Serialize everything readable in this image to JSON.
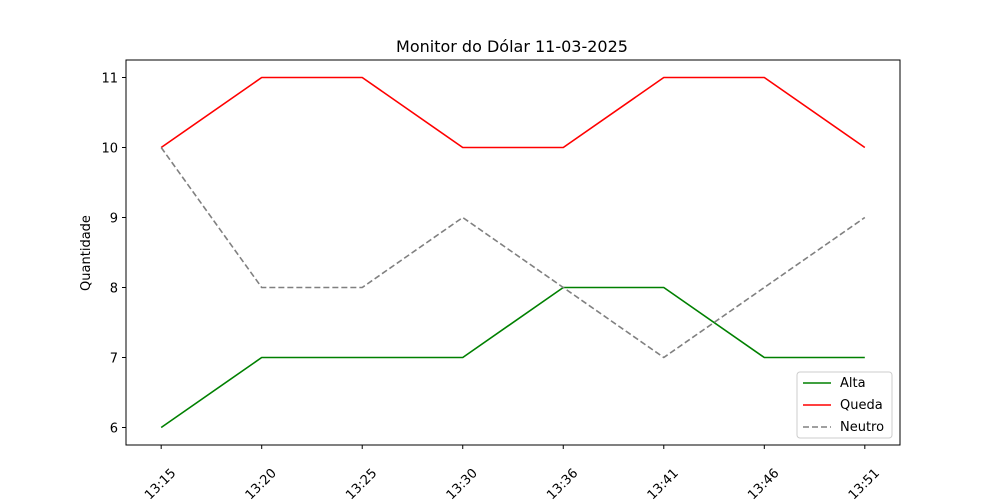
{
  "chart_data": {
    "type": "line",
    "title": "Monitor do Dólar 11-03-2025",
    "xlabel": "",
    "ylabel": "Quantidade",
    "categories": [
      "13:15",
      "13:20",
      "13:25",
      "13:30",
      "13:36",
      "13:41",
      "13:46",
      "13:51"
    ],
    "ylim": [
      5.75,
      11.25
    ],
    "yticks": [
      6,
      7,
      8,
      9,
      10,
      11
    ],
    "grid": false,
    "legend_position": "bottom-right",
    "series": [
      {
        "name": "Alta",
        "values": [
          6,
          7,
          7,
          7,
          8,
          8,
          7,
          7
        ],
        "color": "#008000",
        "style": "solid"
      },
      {
        "name": "Queda",
        "values": [
          10,
          11,
          11,
          10,
          10,
          11,
          11,
          10
        ],
        "color": "#ff0000",
        "style": "solid"
      },
      {
        "name": "Neutro",
        "values": [
          10,
          8,
          8,
          9,
          8,
          7,
          8,
          9
        ],
        "color": "#808080",
        "style": "dashed"
      }
    ]
  }
}
